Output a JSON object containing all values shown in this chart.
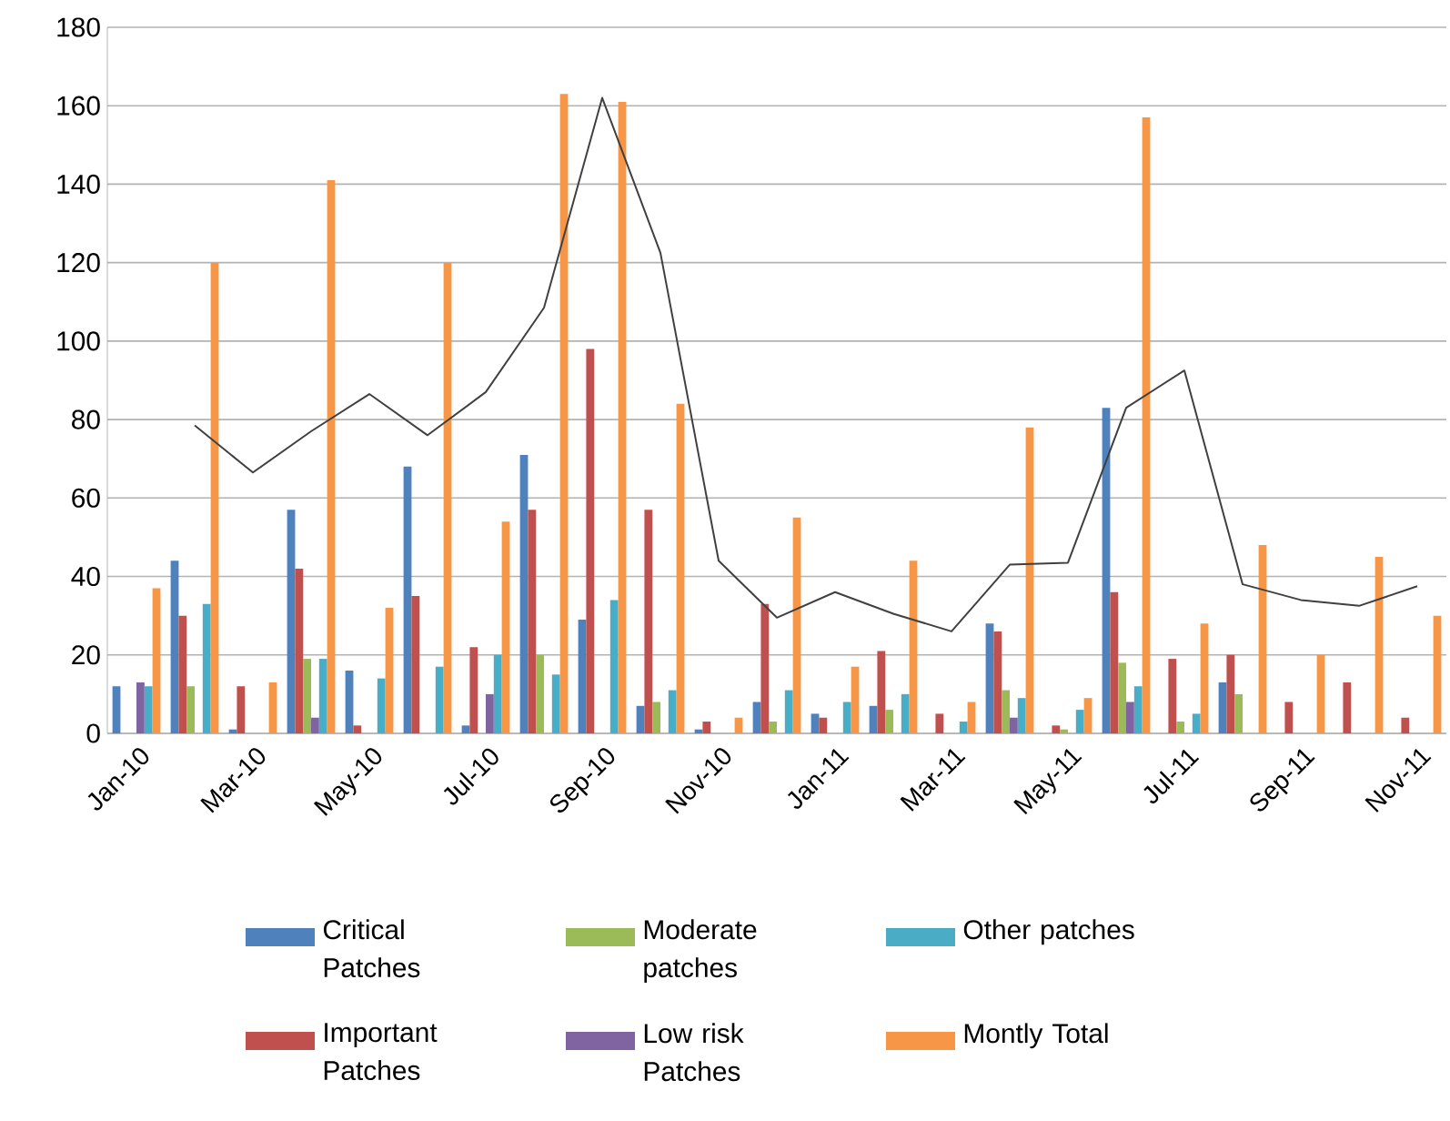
{
  "chart_data": {
    "type": "bar",
    "categories": [
      "Jan-10",
      null,
      "Mar-10",
      null,
      "May-10",
      null,
      "Jul-10",
      null,
      "Sep-10",
      null,
      "Nov-10",
      null,
      "Jan-11",
      null,
      "Mar-11",
      null,
      "May-11",
      null,
      "Jul-11",
      null,
      "Sep-11",
      null,
      "Nov-11"
    ],
    "series": [
      {
        "name": "Critical Patches",
        "color": "#4f81bd",
        "values": [
          12,
          44,
          1,
          57,
          16,
          68,
          2,
          71,
          29,
          7,
          1,
          8,
          5,
          7,
          0,
          28,
          0,
          83,
          0,
          13,
          0,
          0,
          0
        ]
      },
      {
        "name": "Important Patches",
        "color": "#c0504d",
        "values": [
          0,
          30,
          12,
          42,
          2,
          35,
          22,
          57,
          98,
          57,
          3,
          33,
          4,
          21,
          5,
          26,
          2,
          36,
          19,
          20,
          8,
          13,
          4
        ]
      },
      {
        "name": "Moderate patches",
        "color": "#9bbb59",
        "values": [
          0,
          12,
          0,
          19,
          0,
          0,
          0,
          20,
          0,
          8,
          0,
          3,
          0,
          6,
          0,
          11,
          1,
          18,
          3,
          10,
          0,
          0,
          0
        ]
      },
      {
        "name": "Low risk Patches",
        "color": "#8064a2",
        "values": [
          13,
          0,
          0,
          4,
          0,
          0,
          10,
          0,
          0,
          0,
          0,
          0,
          0,
          0,
          0,
          4,
          0,
          8,
          0,
          0,
          0,
          0,
          0
        ]
      },
      {
        "name": "Other patches",
        "color": "#4bacc6",
        "values": [
          12,
          33,
          0,
          19,
          14,
          17,
          20,
          15,
          34,
          11,
          0,
          11,
          8,
          10,
          3,
          9,
          6,
          12,
          5,
          0,
          0,
          0,
          0
        ]
      },
      {
        "name": "Montly Total",
        "color": "#f79646",
        "values": [
          37,
          120,
          13,
          141,
          32,
          120,
          54,
          163,
          161,
          84,
          4,
          55,
          17,
          44,
          8,
          78,
          9,
          157,
          28,
          48,
          20,
          45,
          30
        ]
      },
      {
        "type": "line",
        "color": "#404040",
        "values": [
          null,
          78.5,
          66.5,
          77,
          86.5,
          76,
          87,
          108.5,
          162,
          122.5,
          44,
          29.5,
          36,
          30.5,
          26,
          43,
          43.5,
          83,
          92.5,
          38,
          34,
          32.5,
          37.5
        ]
      }
    ],
    "ylim": [
      0,
      180
    ],
    "yticks": [
      0,
      20,
      40,
      60,
      80,
      100,
      120,
      140,
      160,
      180
    ],
    "grid": "y",
    "legend": "bottom",
    "marker": "none",
    "line_style": "solid"
  }
}
